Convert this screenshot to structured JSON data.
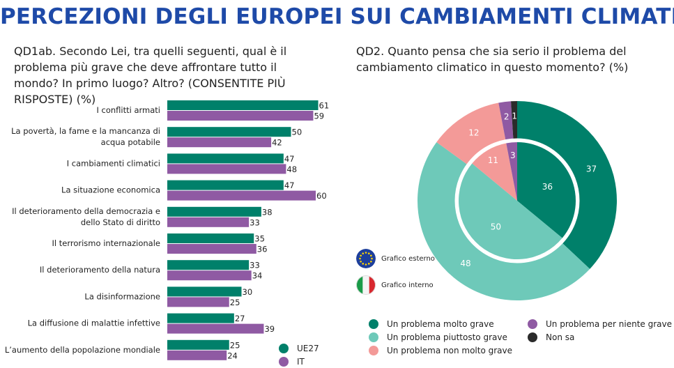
{
  "title": "PERCEZIONI DEGLI EUROPEI SUI CAMBIAMENTI CLIMATICI",
  "left_question": "QD1ab. Secondo Lei, tra quelli seguenti, qual è il problema più grave che deve affrontare tutto il mondo? In primo luogo? Altro? (CONSENTITE PIÙ RISPOSTE) (%)",
  "right_question": "QD2. Quanto pensa che sia serio il problema del cambiamento climatico in questo momento? (%)",
  "colors": {
    "ue27": "#00806a",
    "it": "#8f5aa3",
    "molto_grave": "#00806a",
    "piuttosto_grave": "#6ec9b9",
    "non_molto_grave": "#f39a98",
    "per_niente_grave": "#8f5aa3",
    "non_sa": "#2b2b2b"
  },
  "chart_data": [
    {
      "type": "bar",
      "orientation": "horizontal",
      "categories": [
        "I conflitti armati",
        "La povertà, la fame e la mancanza di acqua potabile",
        "I cambiamenti climatici",
        "La situazione economica",
        "Il deterioramento della democrazia e dello Stato di diritto",
        "Il terrorismo internazionale",
        "Il deterioramento della natura",
        "La disinformazione",
        "La diffusione di malattie infettive",
        "L'aumento della popolazione mondiale"
      ],
      "category_lines": [
        [
          "I conflitti armati"
        ],
        [
          "La povertà, la fame e la mancanza di",
          "acqua potabile"
        ],
        [
          "I cambiamenti climatici"
        ],
        [
          "La situazione economica"
        ],
        [
          "Il deterioramento della democrazia e",
          "dello Stato di diritto"
        ],
        [
          "Il terrorismo internazionale"
        ],
        [
          "Il deterioramento della natura"
        ],
        [
          "La disinformazione"
        ],
        [
          "La diffusione di malattie infettive"
        ],
        [
          "L’aumento della popolazione mondiale"
        ]
      ],
      "series": [
        {
          "name": "UE27",
          "values": [
            61,
            50,
            47,
            47,
            38,
            35,
            33,
            30,
            27,
            25
          ]
        },
        {
          "name": "IT",
          "values": [
            59,
            42,
            48,
            60,
            33,
            36,
            34,
            25,
            39,
            24
          ]
        }
      ],
      "xlim": [
        0,
        65
      ],
      "legend": "bottom-right"
    },
    {
      "type": "pie",
      "variant": "nested-donut",
      "categories": [
        "Un problema molto grave",
        "Un problema piuttosto grave",
        "Un problema non molto grave",
        "Un problema per niente grave",
        "Non sa"
      ],
      "series": [
        {
          "name": "Grafico esterno",
          "values": [
            37,
            48,
            12,
            2,
            1
          ]
        },
        {
          "name": "Grafico interno",
          "values": [
            36,
            50,
            11,
            3,
            0
          ]
        }
      ],
      "legend": "bottom"
    }
  ],
  "ring_legend": {
    "outer": {
      "label": "Grafico esterno",
      "icon": "eu-flag-icon"
    },
    "inner": {
      "label": "Grafico interno",
      "icon": "italy-flag-icon"
    }
  }
}
